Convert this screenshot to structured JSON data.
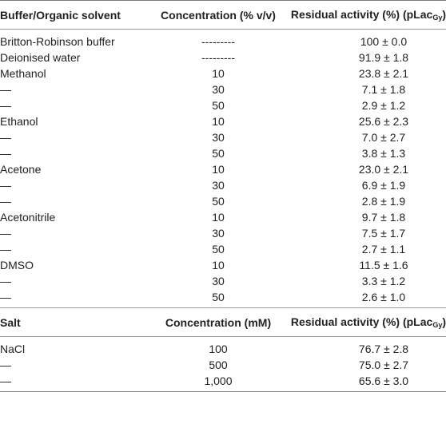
{
  "solvent_table": {
    "headers": {
      "col1": "Buffer/Organic solvent",
      "col2": "Concentration (% v/v)",
      "col3_main": "Residual activity (%) (pLac",
      "col3_sub": "Gy",
      "col3_end": ")"
    },
    "rows": [
      {
        "name": "Britton-Robinson buffer",
        "conc": "---------",
        "activity": "100 ± 0.0"
      },
      {
        "name": "Deionised water",
        "conc": "---------",
        "activity": "91.9 ± 1.8"
      },
      {
        "name": "Methanol",
        "conc": "10",
        "activity": "23.8 ± 2.1"
      },
      {
        "name": "—",
        "conc": "30",
        "activity": "7.1 ± 1.8"
      },
      {
        "name": "—",
        "conc": "50",
        "activity": "2.9 ± 1.2"
      },
      {
        "name": "Ethanol",
        "conc": "10",
        "activity": "25.6 ± 2.3"
      },
      {
        "name": "—",
        "conc": "30",
        "activity": "7.0 ± 2.7"
      },
      {
        "name": "—",
        "conc": "50",
        "activity": "3.8 ± 1.3"
      },
      {
        "name": "Acetone",
        "conc": "10",
        "activity": "23.0 ± 2.1"
      },
      {
        "name": "—",
        "conc": "30",
        "activity": "6.9 ± 1.9"
      },
      {
        "name": "—",
        "conc": "50",
        "activity": "2.8 ± 1.9"
      },
      {
        "name": "Acetonitrile",
        "conc": "10",
        "activity": "9.7 ± 1.8"
      },
      {
        "name": "—",
        "conc": "30",
        "activity": "7.5 ± 1.7"
      },
      {
        "name": "—",
        "conc": "50",
        "activity": "2.7 ± 1.1"
      },
      {
        "name": "DMSO",
        "conc": "10",
        "activity": "11.5 ± 1.6"
      },
      {
        "name": "—",
        "conc": "30",
        "activity": "3.3 ± 1.2"
      },
      {
        "name": "—",
        "conc": "50",
        "activity": "2.6 ± 1.0"
      }
    ]
  },
  "salt_table": {
    "headers": {
      "col1": "Salt",
      "col2": "Concentration (mM)",
      "col3_main": "Residual activity (%) (pLac",
      "col3_sub": "Gy",
      "col3_end": ")"
    },
    "rows": [
      {
        "name": "NaCl",
        "conc": "100",
        "activity": "76.7 ± 2.8"
      },
      {
        "name": "—",
        "conc": "500",
        "activity": "75.0 ± 2.7"
      },
      {
        "name": "—",
        "conc": "1,000",
        "activity": "65.6 ± 3.0"
      }
    ]
  }
}
